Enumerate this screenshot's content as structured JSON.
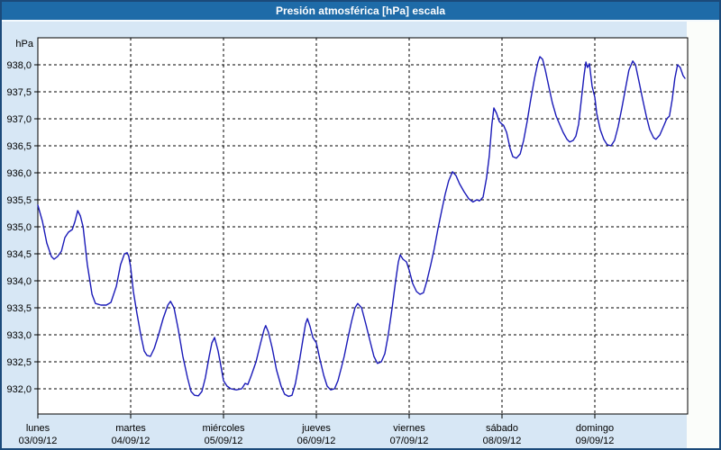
{
  "window": {
    "title": "Presión atmosférica [hPa] escala"
  },
  "colors": {
    "frame_border": "#1b4a7a",
    "titlebar_bg": "#1e6ba8",
    "titlebar_text": "#ffffff",
    "panel_bg": "#d7e7f5",
    "plot_bg": "#ffffff",
    "grid": "#000000",
    "line": "#1a1ab8"
  },
  "chart_data": {
    "type": "line",
    "title": "Presión atmosférica [hPa] escala",
    "unit_label": "hPa",
    "ylabel": "hPa",
    "grid": "dashed",
    "legend": "none",
    "ylim": [
      931.5,
      938.5
    ],
    "y_tick_values": [
      938.0,
      937.5,
      937.0,
      936.5,
      936.0,
      935.5,
      935.0,
      934.5,
      934.0,
      933.5,
      933.0,
      932.5,
      932.0
    ],
    "y_tick_labels": [
      "938,0",
      "937,5",
      "937,0",
      "936,5",
      "936,0",
      "935,5",
      "935,0",
      "934,5",
      "934,0",
      "933,5",
      "933,0",
      "932,5",
      "932,0"
    ],
    "x_days": [
      {
        "name": "lunes",
        "date": "03/09/12"
      },
      {
        "name": "martes",
        "date": "04/09/12"
      },
      {
        "name": "miércoles",
        "date": "05/09/12"
      },
      {
        "name": "jueves",
        "date": "06/09/12"
      },
      {
        "name": "viernes",
        "date": "07/09/12"
      },
      {
        "name": "sábado",
        "date": "08/09/12"
      },
      {
        "name": "domingo",
        "date": "09/09/12"
      }
    ],
    "x_hours_total": 168,
    "series": [
      {
        "name": "Presión atmosférica",
        "points": [
          [
            0,
            935.4
          ],
          [
            1.2,
            935.1
          ],
          [
            2.3,
            934.7
          ],
          [
            3.5,
            934.45
          ],
          [
            4.2,
            934.4
          ],
          [
            5.1,
            934.45
          ],
          [
            6.1,
            934.55
          ],
          [
            7,
            934.8
          ],
          [
            7.9,
            934.9
          ],
          [
            8.9,
            934.95
          ],
          [
            9.6,
            935.1
          ],
          [
            10.3,
            935.3
          ],
          [
            11,
            935.2
          ],
          [
            11.7,
            935
          ],
          [
            12.8,
            934.3
          ],
          [
            14,
            933.75
          ],
          [
            14.9,
            933.58
          ],
          [
            16.3,
            933.55
          ],
          [
            17.7,
            933.55
          ],
          [
            18.9,
            933.6
          ],
          [
            20.3,
            933.9
          ],
          [
            21.4,
            934.3
          ],
          [
            22.4,
            934.5
          ],
          [
            23.1,
            934.52
          ],
          [
            23.5,
            934.45
          ],
          [
            24,
            934.25
          ],
          [
            24.7,
            933.8
          ],
          [
            25.6,
            933.4
          ],
          [
            26.6,
            933
          ],
          [
            27.5,
            932.7
          ],
          [
            28.2,
            932.62
          ],
          [
            29.1,
            932.6
          ],
          [
            30.1,
            932.75
          ],
          [
            31.2,
            933
          ],
          [
            32.4,
            933.3
          ],
          [
            33.6,
            933.55
          ],
          [
            34.3,
            933.62
          ],
          [
            35.2,
            933.5
          ],
          [
            36.3,
            933.1
          ],
          [
            37.5,
            932.6
          ],
          [
            38.7,
            932.2
          ],
          [
            39.6,
            931.95
          ],
          [
            40.5,
            931.88
          ],
          [
            41.5,
            931.87
          ],
          [
            42.4,
            931.95
          ],
          [
            43.3,
            932.2
          ],
          [
            44.3,
            932.6
          ],
          [
            45,
            932.85
          ],
          [
            45.7,
            932.95
          ],
          [
            46.6,
            932.7
          ],
          [
            47.5,
            932.35
          ],
          [
            48,
            932.15
          ],
          [
            48.9,
            932.05
          ],
          [
            49.9,
            932
          ],
          [
            51.3,
            931.98
          ],
          [
            52.7,
            932
          ],
          [
            53.6,
            932.1
          ],
          [
            54.3,
            932.08
          ],
          [
            55.2,
            932.25
          ],
          [
            56.4,
            932.5
          ],
          [
            57.6,
            932.85
          ],
          [
            58.5,
            933.1
          ],
          [
            58.9,
            933.17
          ],
          [
            59.6,
            933.05
          ],
          [
            60.6,
            932.75
          ],
          [
            61.7,
            932.35
          ],
          [
            62.9,
            932.05
          ],
          [
            63.8,
            931.9
          ],
          [
            64.8,
            931.86
          ],
          [
            65.7,
            931.88
          ],
          [
            66.6,
            932.1
          ],
          [
            67.6,
            932.5
          ],
          [
            68.5,
            932.9
          ],
          [
            69.2,
            933.2
          ],
          [
            69.7,
            933.3
          ],
          [
            70.4,
            933.15
          ],
          [
            71.1,
            932.95
          ],
          [
            72,
            932.85
          ],
          [
            72.9,
            932.55
          ],
          [
            73.9,
            932.25
          ],
          [
            74.8,
            932.05
          ],
          [
            75.7,
            931.98
          ],
          [
            76.7,
            932
          ],
          [
            77.6,
            932.15
          ],
          [
            78.5,
            932.4
          ],
          [
            79.2,
            932.6
          ],
          [
            80.2,
            932.95
          ],
          [
            81.1,
            933.25
          ],
          [
            82,
            933.5
          ],
          [
            82.7,
            933.58
          ],
          [
            83.7,
            933.5
          ],
          [
            84.8,
            933.2
          ],
          [
            86,
            932.85
          ],
          [
            86.9,
            932.6
          ],
          [
            87.8,
            932.47
          ],
          [
            88.8,
            932.5
          ],
          [
            89.7,
            932.65
          ],
          [
            90.6,
            933
          ],
          [
            91.6,
            933.5
          ],
          [
            92.5,
            934
          ],
          [
            93.2,
            934.35
          ],
          [
            93.7,
            934.48
          ],
          [
            94.4,
            934.4
          ],
          [
            95.3,
            934.35
          ],
          [
            96,
            934.2
          ],
          [
            96.9,
            933.95
          ],
          [
            97.9,
            933.8
          ],
          [
            98.8,
            933.75
          ],
          [
            99.7,
            933.78
          ],
          [
            100.6,
            934
          ],
          [
            101.6,
            934.3
          ],
          [
            102.5,
            934.6
          ],
          [
            103.4,
            934.95
          ],
          [
            104.4,
            935.3
          ],
          [
            105.3,
            935.6
          ],
          [
            106.2,
            935.85
          ],
          [
            107.2,
            936.02
          ],
          [
            108.1,
            935.95
          ],
          [
            109,
            935.8
          ],
          [
            110.2,
            935.65
          ],
          [
            111.4,
            935.52
          ],
          [
            112.5,
            935.46
          ],
          [
            113.5,
            935.5
          ],
          [
            114.2,
            935.48
          ],
          [
            115.1,
            935.55
          ],
          [
            116,
            935.9
          ],
          [
            116.7,
            936.3
          ],
          [
            117.4,
            936.9
          ],
          [
            117.9,
            937.2
          ],
          [
            118.6,
            937.1
          ],
          [
            119.3,
            936.95
          ],
          [
            120,
            936.9
          ],
          [
            120.4,
            936.88
          ],
          [
            121.2,
            936.75
          ],
          [
            122.1,
            936.45
          ],
          [
            122.8,
            936.3
          ],
          [
            123.7,
            936.27
          ],
          [
            124.7,
            936.35
          ],
          [
            125.6,
            936.6
          ],
          [
            126.5,
            936.95
          ],
          [
            127.4,
            937.35
          ],
          [
            128.4,
            937.75
          ],
          [
            129.3,
            938.05
          ],
          [
            129.8,
            938.15
          ],
          [
            130.5,
            938.1
          ],
          [
            131.2,
            937.9
          ],
          [
            132.1,
            937.6
          ],
          [
            133,
            937.3
          ],
          [
            134,
            937.05
          ],
          [
            134.9,
            936.9
          ],
          [
            135.8,
            936.75
          ],
          [
            136.8,
            936.62
          ],
          [
            137.5,
            936.57
          ],
          [
            138.4,
            936.6
          ],
          [
            139.1,
            936.68
          ],
          [
            139.8,
            936.9
          ],
          [
            140.5,
            937.35
          ],
          [
            141.2,
            937.8
          ],
          [
            141.7,
            938.05
          ],
          [
            142.1,
            937.95
          ],
          [
            142.6,
            938.02
          ],
          [
            143.3,
            937.6
          ],
          [
            144,
            937.4
          ],
          [
            144.5,
            937.1
          ],
          [
            145.4,
            936.8
          ],
          [
            146.3,
            936.62
          ],
          [
            147.2,
            936.52
          ],
          [
            148.2,
            936.5
          ],
          [
            149.1,
            936.6
          ],
          [
            150,
            936.85
          ],
          [
            151,
            937.2
          ],
          [
            151.9,
            937.55
          ],
          [
            152.8,
            937.9
          ],
          [
            153.8,
            938.07
          ],
          [
            154.5,
            938
          ],
          [
            155.4,
            937.7
          ],
          [
            156.4,
            937.35
          ],
          [
            157.3,
            937.05
          ],
          [
            158.2,
            936.8
          ],
          [
            159.2,
            936.65
          ],
          [
            159.8,
            936.62
          ],
          [
            160.8,
            936.7
          ],
          [
            161.7,
            936.85
          ],
          [
            162.6,
            937
          ],
          [
            163.3,
            937.05
          ],
          [
            164,
            937.35
          ],
          [
            164.7,
            937.75
          ],
          [
            165.4,
            938
          ],
          [
            166.1,
            937.95
          ],
          [
            166.8,
            937.8
          ],
          [
            167.3,
            937.75
          ]
        ]
      }
    ]
  }
}
